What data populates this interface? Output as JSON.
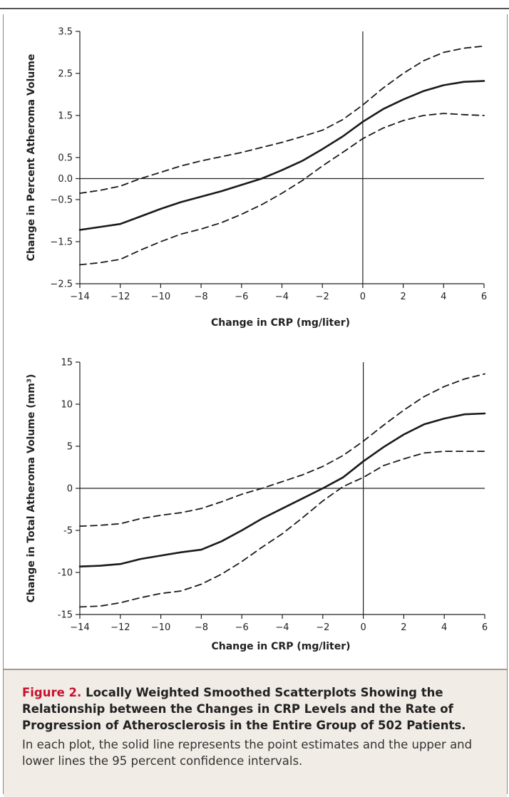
{
  "chart_data": [
    {
      "type": "line",
      "xlabel": "Change in CRP (mg/liter)",
      "ylabel": "Change in Percent Atheroma Volume",
      "xlim": [
        -14,
        6
      ],
      "ylim": [
        -2.5,
        3.5
      ],
      "xticks": [
        "−14",
        "−12",
        "−10",
        "−8",
        "−6",
        "−4",
        "−2",
        "0",
        "2",
        "4",
        "6"
      ],
      "yticks": [
        "3.5",
        "2.5",
        "1.5",
        "0.5",
        "0.0",
        "−0.5",
        "−1.5",
        "−2.5"
      ],
      "series": [
        {
          "style": "dashed",
          "x": [
            -14,
            -13,
            -12,
            -11,
            -10,
            -9,
            -8,
            -7,
            -6,
            -5,
            -4,
            -3,
            -2,
            -1,
            0,
            1,
            2,
            3,
            4,
            5,
            6
          ],
          "y": [
            -0.35,
            -0.28,
            -0.18,
            0.0,
            0.15,
            0.3,
            0.42,
            0.52,
            0.62,
            0.74,
            0.86,
            1.0,
            1.15,
            1.4,
            1.75,
            2.15,
            2.5,
            2.8,
            3.0,
            3.1,
            3.15
          ]
        },
        {
          "style": "solid",
          "x": [
            -14,
            -13,
            -12,
            -11,
            -10,
            -9,
            -8,
            -7,
            -6,
            -5,
            -4,
            -3,
            -2,
            -1,
            0,
            1,
            2,
            3,
            4,
            5,
            6
          ],
          "y": [
            -1.22,
            -1.15,
            -1.08,
            -0.9,
            -0.72,
            -0.56,
            -0.43,
            -0.3,
            -0.15,
            0.0,
            0.2,
            0.42,
            0.7,
            1.0,
            1.35,
            1.65,
            1.88,
            2.08,
            2.22,
            2.3,
            2.32
          ]
        },
        {
          "style": "dashed",
          "x": [
            -14,
            -13,
            -12,
            -11,
            -10,
            -9,
            -8,
            -7,
            -6,
            -5,
            -4,
            -3,
            -2,
            -1,
            0,
            1,
            2,
            3,
            4,
            5,
            6
          ],
          "y": [
            -2.05,
            -2.0,
            -1.92,
            -1.7,
            -1.5,
            -1.32,
            -1.2,
            -1.05,
            -0.85,
            -0.62,
            -0.35,
            -0.05,
            0.3,
            0.62,
            0.95,
            1.2,
            1.38,
            1.5,
            1.55,
            1.52,
            1.5
          ]
        }
      ]
    },
    {
      "type": "line",
      "xlabel": "Change in CRP (mg/liter)",
      "ylabel": "Change in Total Atheroma Volume (mm³)",
      "xlim": [
        -14,
        6
      ],
      "ylim": [
        -15,
        15
      ],
      "xticks": [
        "−14",
        "−12",
        "−10",
        "−8",
        "−6",
        "−4",
        "−2",
        "0",
        "2",
        "4",
        "6"
      ],
      "yticks": [
        "15",
        "10",
        "5",
        "0",
        "-5",
        "-10",
        "-15"
      ],
      "series": [
        {
          "style": "dashed",
          "x": [
            -14,
            -13,
            -12,
            -11,
            -10,
            -9,
            -8,
            -7,
            -6,
            -5,
            -4,
            -3,
            -2,
            -1,
            0,
            1,
            2,
            3,
            4,
            5,
            6
          ],
          "y": [
            -4.5,
            -4.4,
            -4.2,
            -3.6,
            -3.2,
            -2.9,
            -2.4,
            -1.6,
            -0.7,
            0.0,
            0.8,
            1.6,
            2.6,
            3.9,
            5.6,
            7.5,
            9.3,
            10.9,
            12.1,
            13.0,
            13.6
          ]
        },
        {
          "style": "solid",
          "x": [
            -14,
            -13,
            -12,
            -11,
            -10,
            -9,
            -8,
            -7,
            -6,
            -5,
            -4,
            -3,
            -2,
            -1,
            0,
            1,
            2,
            3,
            4,
            5,
            6
          ],
          "y": [
            -9.3,
            -9.2,
            -9.0,
            -8.4,
            -8.0,
            -7.6,
            -7.3,
            -6.3,
            -5.0,
            -3.6,
            -2.4,
            -1.2,
            0.0,
            1.3,
            3.2,
            4.9,
            6.4,
            7.6,
            8.3,
            8.8,
            8.9
          ]
        },
        {
          "style": "dashed",
          "x": [
            -14,
            -13,
            -12,
            -11,
            -10,
            -9,
            -8,
            -7,
            -6,
            -5,
            -4,
            -3,
            -2,
            -1,
            0,
            1,
            2,
            3,
            4,
            5,
            6
          ],
          "y": [
            -14.1,
            -14.0,
            -13.6,
            -13.0,
            -12.5,
            -12.2,
            -11.4,
            -10.2,
            -8.7,
            -7.0,
            -5.4,
            -3.5,
            -1.5,
            0.2,
            1.3,
            2.7,
            3.5,
            4.2,
            4.4,
            4.4,
            4.4
          ]
        }
      ]
    }
  ],
  "caption": {
    "label": "Figure 2.",
    "title": "Locally Weighted Smoothed Scatterplots Showing the Relationship between the Changes in CRP Levels and the Rate of Progression of Athero­sclerosis in the Entire Group of 502 Patients.",
    "body": "In each plot, the solid line represents the point estimates and the upper and lower lines the 95 percent confidence intervals."
  }
}
